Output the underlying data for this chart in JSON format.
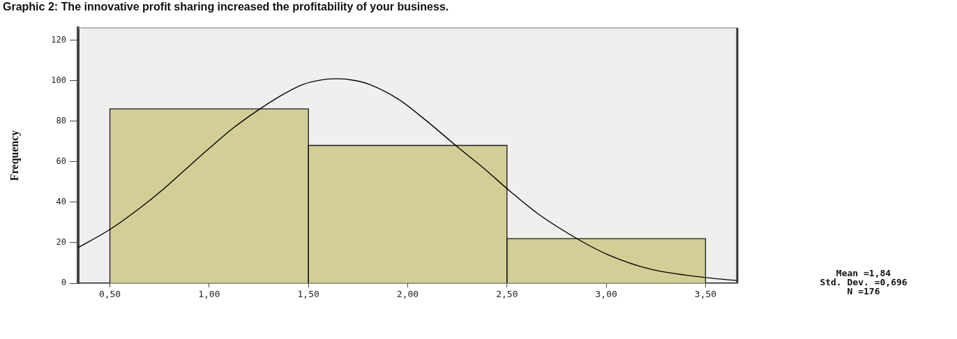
{
  "chart_data": {
    "type": "histogram",
    "title": "Graphic 2: The innovative profit sharing increased the profitability of your business.",
    "ylabel": "Frequency",
    "series": [
      {
        "bins": [
          0.5,
          1.5,
          2.5,
          3.5
        ],
        "values": [
          86,
          68,
          22
        ],
        "color": "#d2ce96"
      },
      {
        "type": "line",
        "x": [
          0.34,
          0.5,
          0.65,
          0.77,
          0.89,
          1.0,
          1.12,
          1.24,
          1.36,
          1.47,
          1.57,
          1.65,
          1.73,
          1.81,
          1.95,
          2.09,
          2.26,
          2.38,
          2.52,
          2.66,
          2.87,
          3.01,
          3.22,
          3.5,
          3.66
        ],
        "values": [
          17.6,
          26.5,
          37,
          46.5,
          57,
          66.5,
          76.5,
          85,
          92.5,
          98,
          100.4,
          100.9,
          100.1,
          98,
          91,
          80.5,
          66.5,
          57,
          45,
          34,
          21,
          14,
          7,
          2.8,
          1.3
        ],
        "color": "#000000"
      }
    ],
    "xlim": [
      0.34,
      3.66
    ],
    "xticks": [
      {
        "value": 0.5,
        "label": "0,50"
      },
      {
        "value": 1.0,
        "label": "1,00"
      },
      {
        "value": 1.5,
        "label": "1,50"
      },
      {
        "value": 2.0,
        "label": "2,00"
      },
      {
        "value": 2.5,
        "label": "2,50"
      },
      {
        "value": 3.0,
        "label": "3,00"
      },
      {
        "value": 3.5,
        "label": "3,50"
      }
    ],
    "ylim": [
      0,
      126
    ],
    "yticks": [
      0,
      20,
      40,
      60,
      80,
      100,
      120
    ],
    "grid": false,
    "legend": false,
    "annotations": [
      "Mean =1,84",
      "Std. Dev. =0,696",
      "N =176"
    ]
  }
}
